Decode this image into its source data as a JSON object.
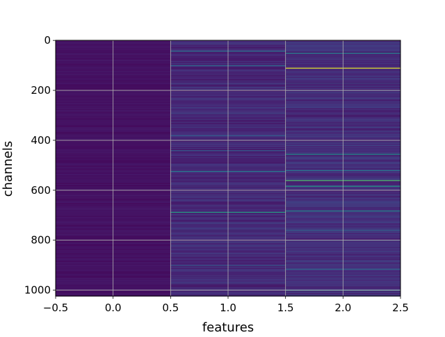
{
  "chart_data": {
    "type": "heatmap",
    "colormap": "viridis",
    "grid": true,
    "xlabel": "features",
    "ylabel": "channels",
    "x_tick_labels": [
      "−0.5",
      "0.0",
      "0.5",
      "1.0",
      "1.5",
      "2.0",
      "2.5"
    ],
    "x_ticks": [
      -0.5,
      0.0,
      0.5,
      1.0,
      1.5,
      2.0,
      2.5
    ],
    "y_tick_labels": [
      "0",
      "200",
      "400",
      "600",
      "800",
      "1000"
    ],
    "y_ticks": [
      0,
      200,
      400,
      600,
      800,
      1000
    ],
    "xlim": [
      -0.5,
      2.5
    ],
    "ylim": [
      1023.5,
      -0.5
    ],
    "columns": [
      0,
      1,
      2
    ],
    "n_channels": 1024,
    "bright_rows": [
      {
        "column": 1,
        "channel": 42,
        "value": 0.38
      },
      {
        "column": 1,
        "channel": 100,
        "value": 0.35
      },
      {
        "column": 1,
        "channel": 523,
        "value": 0.42
      },
      {
        "column": 1,
        "channel": 687,
        "value": 0.58
      },
      {
        "column": 1,
        "channel": 380,
        "value": 0.3
      },
      {
        "column": 1,
        "channel": 440,
        "value": 0.3
      },
      {
        "column": 1,
        "channel": 900,
        "value": 0.28
      },
      {
        "column": 2,
        "channel": 50,
        "value": 0.45
      },
      {
        "column": 2,
        "channel": 110,
        "value": 0.97
      },
      {
        "column": 2,
        "channel": 455,
        "value": 0.5
      },
      {
        "column": 2,
        "channel": 520,
        "value": 0.4
      },
      {
        "column": 2,
        "channel": 560,
        "value": 0.72
      },
      {
        "column": 2,
        "channel": 583,
        "value": 0.55
      },
      {
        "column": 2,
        "channel": 682,
        "value": 0.48
      },
      {
        "column": 2,
        "channel": 760,
        "value": 0.32
      },
      {
        "column": 2,
        "channel": 915,
        "value": 0.35
      },
      {
        "column": 2,
        "channel": 1000,
        "value": 0.4
      }
    ],
    "column_background_levels": [
      0.05,
      0.12,
      0.14
    ]
  }
}
